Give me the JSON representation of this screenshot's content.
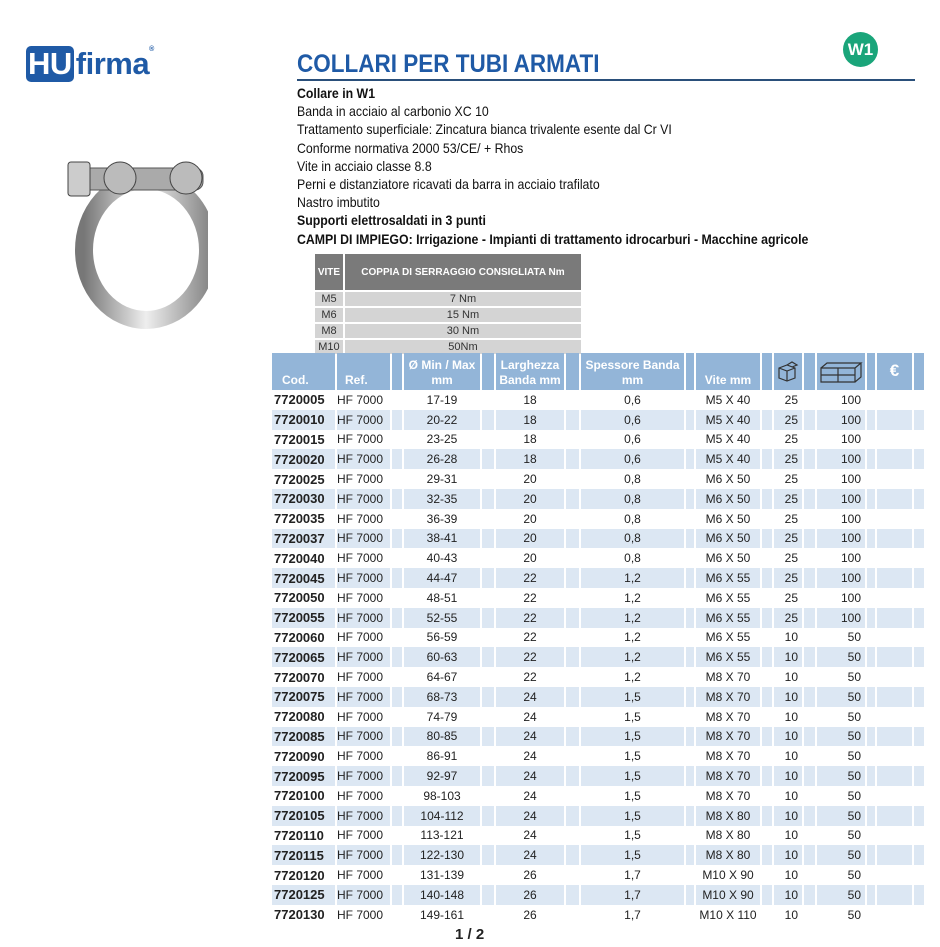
{
  "brand": {
    "logo_text": "HUfirma",
    "badge": "W1"
  },
  "title": "COLLARI PER TUBI ARMATI",
  "description": [
    {
      "text": "Collare in W1",
      "bold": true
    },
    {
      "text": "Banda in acciaio al carbonio XC 10",
      "bold": false
    },
    {
      "text": "Trattamento superficiale: Zincatura bianca trivalente esente dal Cr VI",
      "bold": false
    },
    {
      "text": "Conforme normativa  2000 53/CE/ + Rhos",
      "bold": false
    },
    {
      "text": "Vite in acciaio classe 8.8",
      "bold": false
    },
    {
      "text": "Perni e distanziatore ricavati da barra in acciaio trafilato",
      "bold": false
    },
    {
      "text": "Nastro imbutito",
      "bold": false
    },
    {
      "text": "Supporti elettrosaldati in 3 punti",
      "bold": true
    },
    {
      "text": "CAMPI DI IMPIEGO:  Irrigazione - Impianti di trattamento idrocarburi - Macchine agricole",
      "bold": true
    }
  ],
  "torque_table": {
    "headers": [
      "VITE",
      "COPPIA DI SERRAGGIO CONSIGLIATA Nm"
    ],
    "rows": [
      [
        "M5",
        "7 Nm"
      ],
      [
        "M6",
        "15 Nm"
      ],
      [
        "M8",
        "30 Nm"
      ],
      [
        "M10",
        "50Nm"
      ]
    ]
  },
  "product_table": {
    "headers": {
      "cod": "Cod.",
      "ref": "Ref.",
      "dia": "Ø Min / Max mm",
      "larg": "Larghezza Banda mm",
      "spess": "Spessore Banda mm",
      "vite": "Vite mm",
      "pack_small": "box-icon",
      "pack_large": "carton-icon",
      "price": "€"
    },
    "rows": [
      [
        "7720005",
        "HF 7000",
        "17-19",
        "18",
        "0,6",
        "M5 X 40",
        "25",
        "100"
      ],
      [
        "7720010",
        "HF 7000",
        "20-22",
        "18",
        "0,6",
        "M5 X 40",
        "25",
        "100"
      ],
      [
        "7720015",
        "HF 7000",
        "23-25",
        "18",
        "0,6",
        "M5 X 40",
        "25",
        "100"
      ],
      [
        "7720020",
        "HF 7000",
        "26-28",
        "18",
        "0,6",
        "M5 X 40",
        "25",
        "100"
      ],
      [
        "7720025",
        "HF 7000",
        "29-31",
        "20",
        "0,8",
        "M6 X 50",
        "25",
        "100"
      ],
      [
        "7720030",
        "HF 7000",
        "32-35",
        "20",
        "0,8",
        "M6 X 50",
        "25",
        "100"
      ],
      [
        "7720035",
        "HF 7000",
        "36-39",
        "20",
        "0,8",
        "M6 X 50",
        "25",
        "100"
      ],
      [
        "7720037",
        "HF 7000",
        "38-41",
        "20",
        "0,8",
        "M6 X 50",
        "25",
        "100"
      ],
      [
        "7720040",
        "HF 7000",
        "40-43",
        "20",
        "0,8",
        "M6 X 50",
        "25",
        "100"
      ],
      [
        "7720045",
        "HF 7000",
        "44-47",
        "22",
        "1,2",
        "M6 X 55",
        "25",
        "100"
      ],
      [
        "7720050",
        "HF 7000",
        "48-51",
        "22",
        "1,2",
        "M6 X 55",
        "25",
        "100"
      ],
      [
        "7720055",
        "HF 7000",
        "52-55",
        "22",
        "1,2",
        "M6 X 55",
        "25",
        "100"
      ],
      [
        "7720060",
        "HF 7000",
        "56-59",
        "22",
        "1,2",
        "M6 X 55",
        "10",
        "50"
      ],
      [
        "7720065",
        "HF 7000",
        "60-63",
        "22",
        "1,2",
        "M6 X 55",
        "10",
        "50"
      ],
      [
        "7720070",
        "HF 7000",
        "64-67",
        "22",
        "1,2",
        "M8 X 70",
        "10",
        "50"
      ],
      [
        "7720075",
        "HF 7000",
        "68-73",
        "24",
        "1,5",
        "M8 X 70",
        "10",
        "50"
      ],
      [
        "7720080",
        "HF 7000",
        "74-79",
        "24",
        "1,5",
        "M8 X 70",
        "10",
        "50"
      ],
      [
        "7720085",
        "HF 7000",
        "80-85",
        "24",
        "1,5",
        "M8 X 70",
        "10",
        "50"
      ],
      [
        "7720090",
        "HF 7000",
        "86-91",
        "24",
        "1,5",
        "M8 X 70",
        "10",
        "50"
      ],
      [
        "7720095",
        "HF 7000",
        "92-97",
        "24",
        "1,5",
        "M8 X 70",
        "10",
        "50"
      ],
      [
        "7720100",
        "HF 7000",
        "98-103",
        "24",
        "1,5",
        "M8 X 70",
        "10",
        "50"
      ],
      [
        "7720105",
        "HF 7000",
        "104-112",
        "24",
        "1,5",
        "M8 X 80",
        "10",
        "50"
      ],
      [
        "7720110",
        "HF 7000",
        "113-121",
        "24",
        "1,5",
        "M8 X 80",
        "10",
        "50"
      ],
      [
        "7720115",
        "HF 7000",
        "122-130",
        "24",
        "1,5",
        "M8 X 80",
        "10",
        "50"
      ],
      [
        "7720120",
        "HF 7000",
        "131-139",
        "26",
        "1,7",
        "M10 X 90",
        "10",
        "50"
      ],
      [
        "7720125",
        "HF 7000",
        "140-148",
        "26",
        "1,7",
        "M10 X 90",
        "10",
        "50"
      ],
      [
        "7720130",
        "HF 7000",
        "149-161",
        "26",
        "1,7",
        "M10 X 110",
        "10",
        "50"
      ]
    ]
  },
  "pager": "1 / 2",
  "colors": {
    "brand_blue": "#1f5aa6",
    "badge_green": "#1aa57a",
    "header_blue": "#93b5d8",
    "row_alt": "#dce7f3"
  }
}
